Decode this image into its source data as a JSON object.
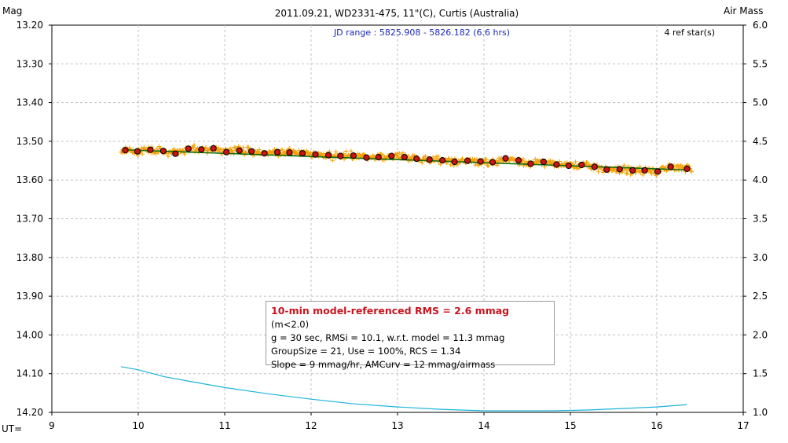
{
  "chart_data": {
    "type": "scatter",
    "title": "2011.09.21, WD2331-475, 11\"(C), Curtis (Australia)",
    "left_axis_label": "Mag",
    "right_axis_label": "Air Mass",
    "x_axis_label": "UT=",
    "xlim": [
      9,
      17
    ],
    "ylim_left": [
      14.2,
      13.2
    ],
    "ylim_right": [
      1.0,
      6.0
    ],
    "x_ticks": [
      "9",
      "10",
      "11",
      "12",
      "13",
      "14",
      "15",
      "16",
      "17"
    ],
    "y_ticks_left": [
      "13.20",
      "13.30",
      "13.40",
      "13.50",
      "13.60",
      "13.70",
      "13.80",
      "13.90",
      "14.00",
      "14.10",
      "14.20"
    ],
    "y_ticks_right": [
      "6.0",
      "5.5",
      "5.0",
      "4.5",
      "4.0",
      "3.5",
      "3.0",
      "2.5",
      "2.0",
      "1.5",
      "1.0"
    ],
    "grid": true,
    "annotation_jd": "JD range : 5825.908 - 5826.182 (6.6 hrs)",
    "annotation_refstars": "4 ref star(s)",
    "raw_points_color": "#f5a000",
    "binned_points_color": "#c81414",
    "trend_color": "#107010",
    "airmass_color": "#1cb4dc",
    "binned_x": [
      9.85,
      9.99,
      10.14,
      10.29,
      10.43,
      10.58,
      10.73,
      10.87,
      11.02,
      11.17,
      11.31,
      11.46,
      11.61,
      11.75,
      11.9,
      12.05,
      12.2,
      12.34,
      12.49,
      12.64,
      12.78,
      12.93,
      13.08,
      13.22,
      13.37,
      13.52,
      13.66,
      13.81,
      13.96,
      14.1,
      14.25,
      14.4,
      14.54,
      14.69,
      14.84,
      14.98,
      15.13,
      15.28,
      15.42,
      15.57,
      15.72,
      15.86,
      16.01,
      16.16,
      16.35
    ],
    "binned_y": [
      13.523,
      13.526,
      13.522,
      13.525,
      13.532,
      13.519,
      13.521,
      13.518,
      13.528,
      13.524,
      13.526,
      13.531,
      13.528,
      13.529,
      13.531,
      13.534,
      13.536,
      13.538,
      13.537,
      13.542,
      13.541,
      13.538,
      13.541,
      13.545,
      13.547,
      13.549,
      13.553,
      13.55,
      13.552,
      13.554,
      13.544,
      13.549,
      13.558,
      13.553,
      13.56,
      13.563,
      13.561,
      13.566,
      13.573,
      13.572,
      13.575,
      13.575,
      13.578,
      13.566,
      13.571
    ],
    "trend": {
      "x": [
        9.85,
        16.35
      ],
      "y": [
        13.522,
        13.574
      ]
    },
    "airmass": {
      "x": [
        9.8,
        10.0,
        10.3,
        10.6,
        11.0,
        11.5,
        12.0,
        12.5,
        13.0,
        13.5,
        14.0,
        14.4,
        14.8,
        15.2,
        15.6,
        16.0,
        16.35
      ],
      "y": [
        1.59,
        1.55,
        1.46,
        1.4,
        1.32,
        1.24,
        1.17,
        1.11,
        1.07,
        1.04,
        1.02,
        1.02,
        1.02,
        1.03,
        1.05,
        1.07,
        1.1
      ]
    },
    "legend": {
      "rms_line": "10-min model-referenced RMS = 2.6 mmag",
      "rms_condition": "(m<2.0)",
      "line2": "g = 30 sec, RMSi = 10.1, w.r.t. model = 11.3 mmag",
      "line3": "GroupSize = 21, Use = 100%, RCS = 1.34",
      "line4": "Slope = 9 mmag/hr, AMCurv = 12 mmag/airmass"
    }
  }
}
